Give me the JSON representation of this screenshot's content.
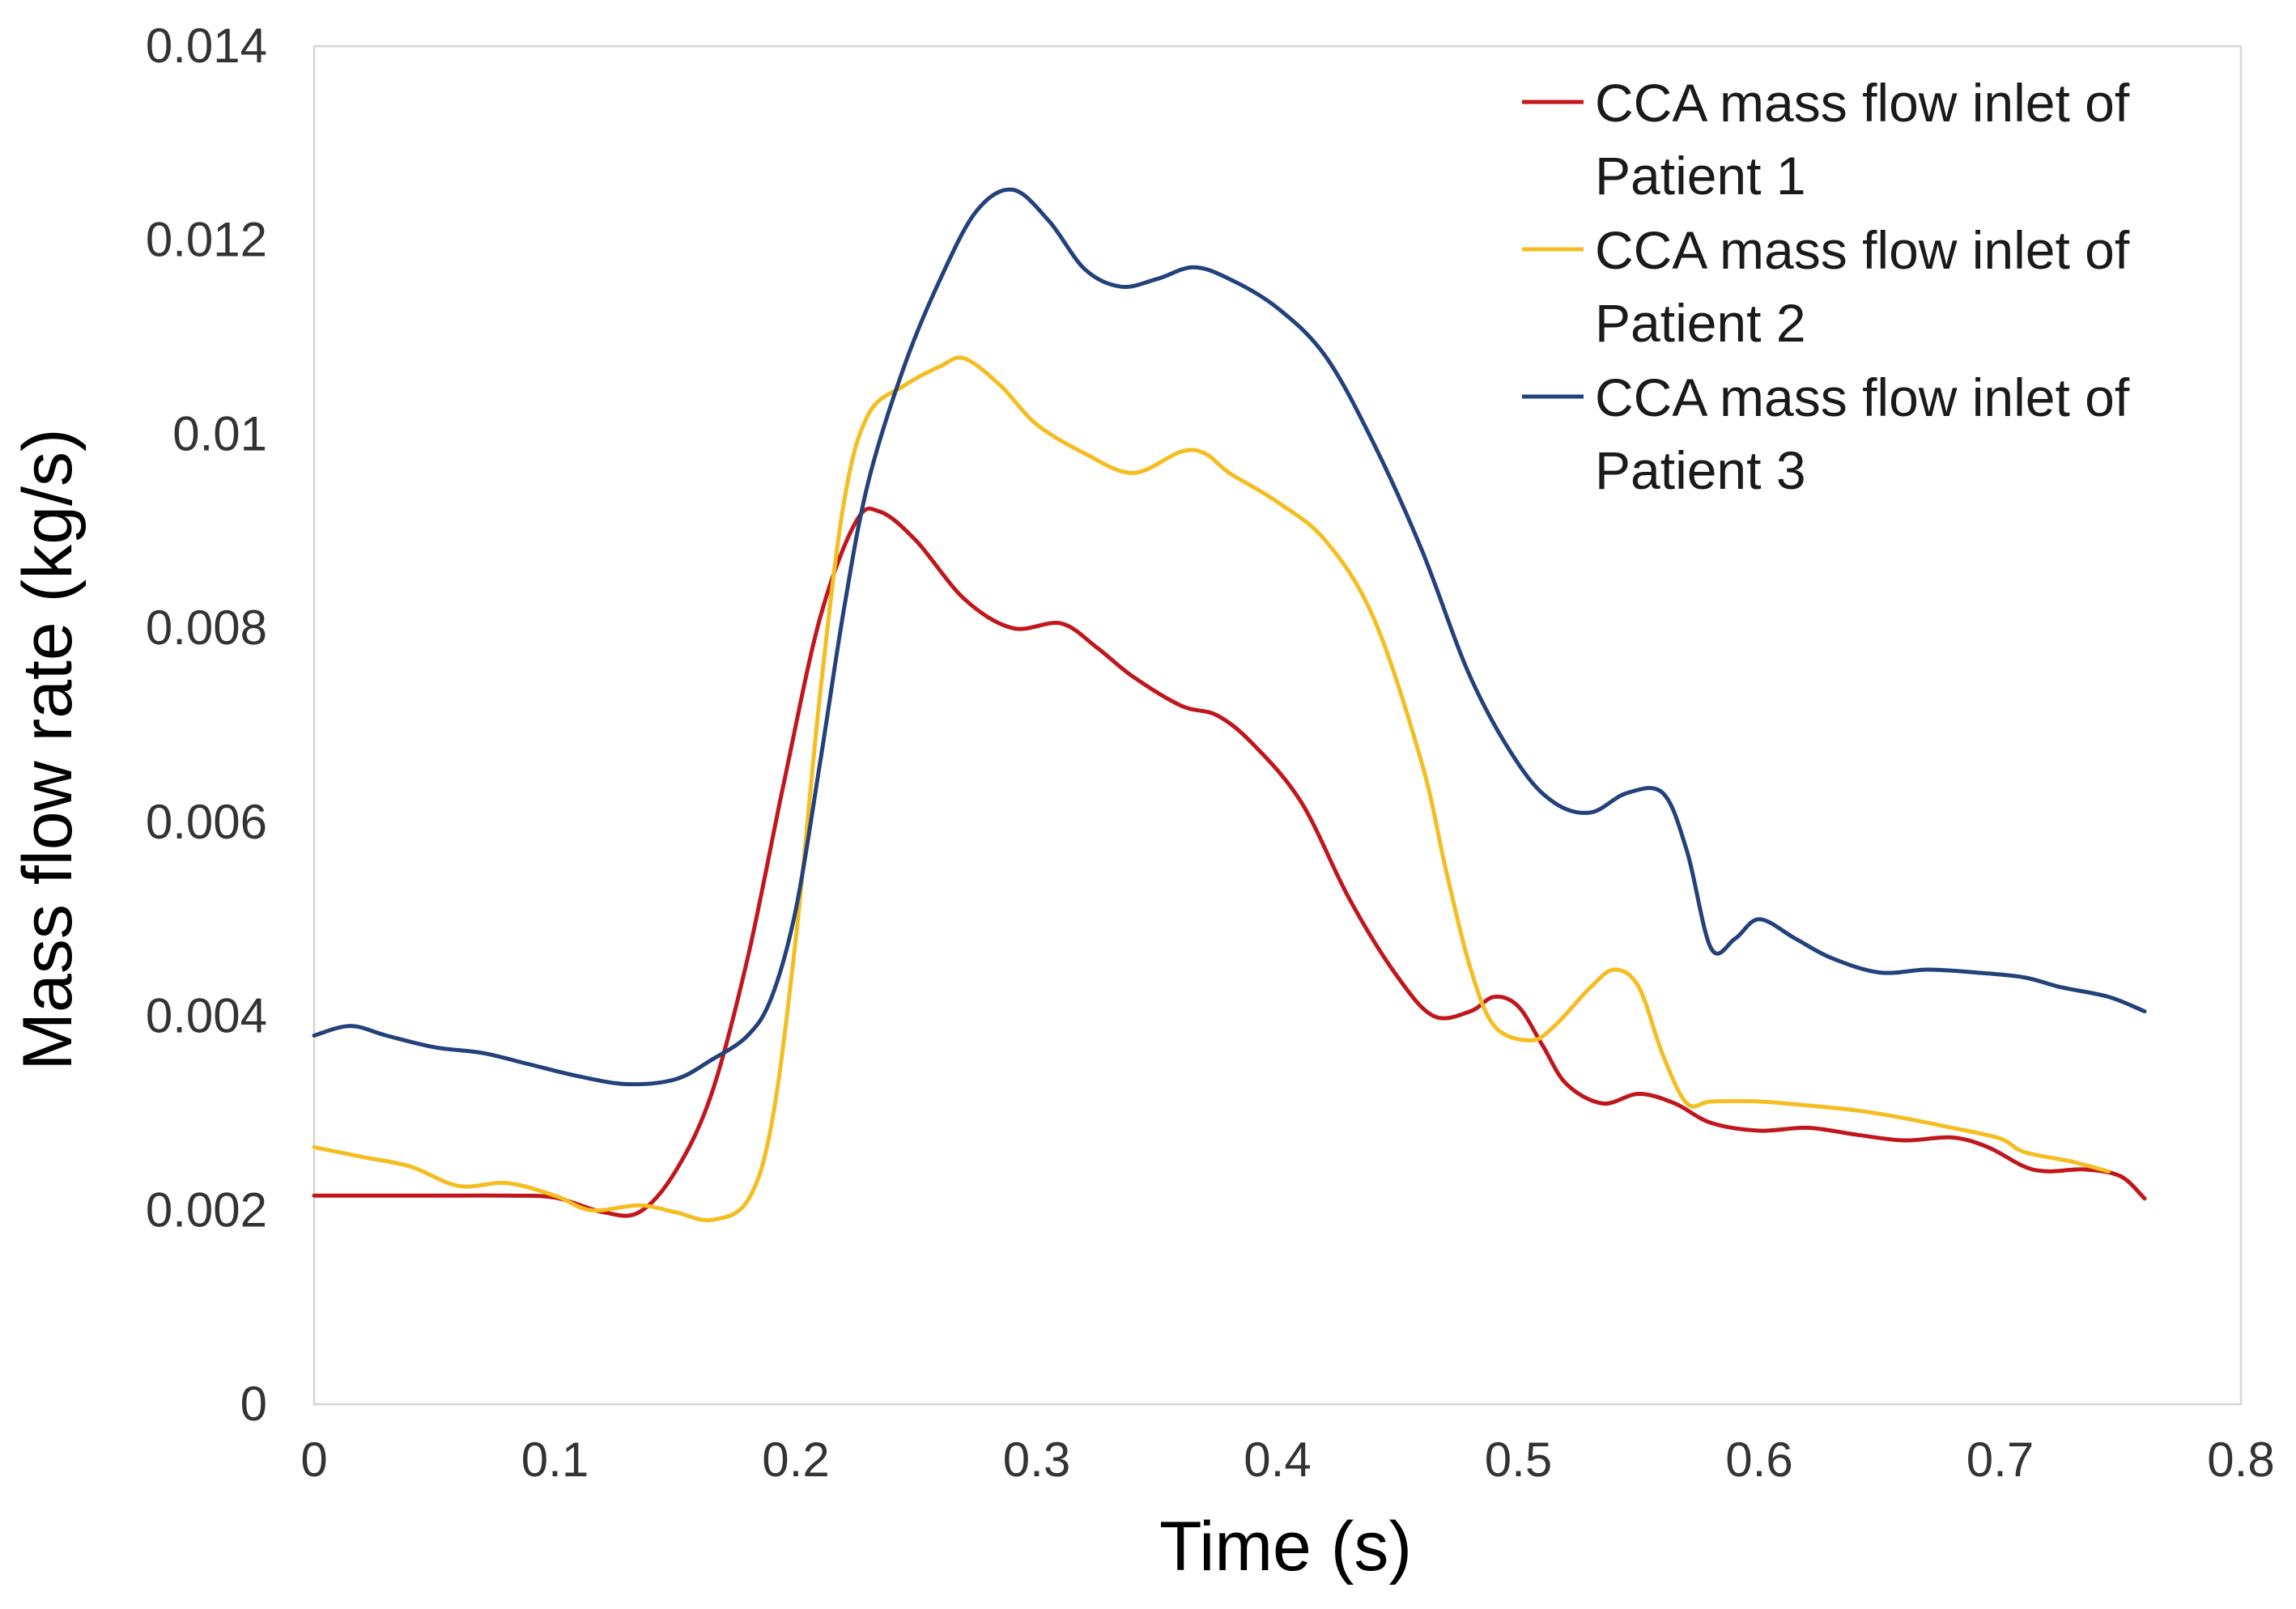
{
  "chart_data": {
    "type": "line",
    "title": "",
    "xlabel": "Time (s)",
    "ylabel": "Mass flow rate (kg/s)",
    "xlim": [
      0,
      0.8
    ],
    "ylim": [
      0,
      0.014
    ],
    "xticks": [
      0,
      0.1,
      0.2,
      0.3,
      0.4,
      0.5,
      0.6,
      0.7,
      0.8
    ],
    "xtick_labels": [
      "0",
      "0.1",
      "0.2",
      "0.3",
      "0.4",
      "0.5",
      "0.6",
      "0.7",
      "0.8"
    ],
    "yticks": [
      0,
      0.002,
      0.004,
      0.006,
      0.008,
      0.01,
      0.012,
      0.014
    ],
    "ytick_labels": [
      "0",
      "0.002",
      "0.004",
      "0.006",
      "0.008",
      "0.01",
      "0.012",
      "0.014"
    ],
    "grid": false,
    "legend_position": "top-right",
    "series": [
      {
        "name": "CCA mass flow inlet of Patient 1",
        "legend_lines": [
          "CCA mass flow inlet of",
          "Patient 1"
        ],
        "color": "#c0161c",
        "points": [
          [
            0,
            0.00215
          ],
          [
            0.02,
            0.00215
          ],
          [
            0.05,
            0.00215
          ],
          [
            0.08,
            0.00215
          ],
          [
            0.1,
            0.00213
          ],
          [
            0.12,
            0.00198
          ],
          [
            0.135,
            0.00198
          ],
          [
            0.15,
            0.0024
          ],
          [
            0.165,
            0.0032
          ],
          [
            0.18,
            0.0046
          ],
          [
            0.195,
            0.0064
          ],
          [
            0.21,
            0.0081
          ],
          [
            0.225,
            0.0091
          ],
          [
            0.235,
            0.0092
          ],
          [
            0.25,
            0.0089
          ],
          [
            0.27,
            0.0083
          ],
          [
            0.29,
            0.008
          ],
          [
            0.31,
            0.00805
          ],
          [
            0.325,
            0.0078
          ],
          [
            0.34,
            0.0075
          ],
          [
            0.36,
            0.0072
          ],
          [
            0.375,
            0.0071
          ],
          [
            0.39,
            0.0068
          ],
          [
            0.41,
            0.0062
          ],
          [
            0.43,
            0.0052
          ],
          [
            0.45,
            0.0044
          ],
          [
            0.465,
            0.004
          ],
          [
            0.48,
            0.00405
          ],
          [
            0.49,
            0.0042
          ],
          [
            0.5,
            0.0041
          ],
          [
            0.51,
            0.0037
          ],
          [
            0.52,
            0.0033
          ],
          [
            0.535,
            0.0031
          ],
          [
            0.55,
            0.0032
          ],
          [
            0.565,
            0.0031
          ],
          [
            0.58,
            0.0029
          ],
          [
            0.6,
            0.00282
          ],
          [
            0.62,
            0.00285
          ],
          [
            0.64,
            0.00278
          ],
          [
            0.66,
            0.00272
          ],
          [
            0.68,
            0.00275
          ],
          [
            0.695,
            0.00265
          ],
          [
            0.71,
            0.00245
          ],
          [
            0.72,
            0.0024
          ],
          [
            0.735,
            0.00242
          ],
          [
            0.75,
            0.00235
          ],
          [
            0.76,
            0.00212
          ]
        ]
      },
      {
        "name": "CCA mass flow inlet of Patient 2",
        "legend_lines": [
          "CCA mass flow inlet of",
          "Patient 2"
        ],
        "color": "#f5bd1f",
        "points": [
          [
            0,
            0.00265
          ],
          [
            0.02,
            0.00255
          ],
          [
            0.04,
            0.00245
          ],
          [
            0.06,
            0.00225
          ],
          [
            0.08,
            0.00228
          ],
          [
            0.1,
            0.00215
          ],
          [
            0.115,
            0.002
          ],
          [
            0.135,
            0.00205
          ],
          [
            0.15,
            0.00198
          ],
          [
            0.165,
            0.0019
          ],
          [
            0.18,
            0.0021
          ],
          [
            0.19,
            0.0029
          ],
          [
            0.2,
            0.0048
          ],
          [
            0.21,
            0.0073
          ],
          [
            0.22,
            0.0093
          ],
          [
            0.23,
            0.0102
          ],
          [
            0.245,
            0.0105
          ],
          [
            0.26,
            0.0107
          ],
          [
            0.27,
            0.01078
          ],
          [
            0.285,
            0.0105
          ],
          [
            0.3,
            0.0101
          ],
          [
            0.32,
            0.0098
          ],
          [
            0.34,
            0.0096
          ],
          [
            0.36,
            0.00982
          ],
          [
            0.37,
            0.0098
          ],
          [
            0.38,
            0.0096
          ],
          [
            0.4,
            0.0093
          ],
          [
            0.42,
            0.0089
          ],
          [
            0.44,
            0.0081
          ],
          [
            0.46,
            0.0066
          ],
          [
            0.47,
            0.0055
          ],
          [
            0.48,
            0.0045
          ],
          [
            0.49,
            0.0039
          ],
          [
            0.505,
            0.00375
          ],
          [
            0.515,
            0.0039
          ],
          [
            0.53,
            0.0043
          ],
          [
            0.54,
            0.00448
          ],
          [
            0.55,
            0.0043
          ],
          [
            0.56,
            0.0036
          ],
          [
            0.57,
            0.0031
          ],
          [
            0.58,
            0.00312
          ],
          [
            0.6,
            0.00312
          ],
          [
            0.62,
            0.00308
          ],
          [
            0.64,
            0.00303
          ],
          [
            0.66,
            0.00295
          ],
          [
            0.68,
            0.00285
          ],
          [
            0.7,
            0.00274
          ],
          [
            0.71,
            0.0026
          ],
          [
            0.73,
            0.0025
          ],
          [
            0.745,
            0.0024
          ]
        ]
      },
      {
        "name": "CCA mass flow inlet of Patient 3",
        "legend_lines": [
          "CCA mass flow inlet of",
          "Patient 3"
        ],
        "color": "#23417a",
        "points": [
          [
            0,
            0.0038
          ],
          [
            0.015,
            0.0039
          ],
          [
            0.03,
            0.0038
          ],
          [
            0.05,
            0.00368
          ],
          [
            0.07,
            0.00362
          ],
          [
            0.09,
            0.0035
          ],
          [
            0.11,
            0.00338
          ],
          [
            0.13,
            0.0033
          ],
          [
            0.15,
            0.00335
          ],
          [
            0.165,
            0.00355
          ],
          [
            0.18,
            0.0038
          ],
          [
            0.19,
            0.0042
          ],
          [
            0.2,
            0.0051
          ],
          [
            0.21,
            0.0066
          ],
          [
            0.22,
            0.0082
          ],
          [
            0.23,
            0.0095
          ],
          [
            0.245,
            0.0107
          ],
          [
            0.26,
            0.0116
          ],
          [
            0.275,
            0.0123
          ],
          [
            0.29,
            0.01252
          ],
          [
            0.305,
            0.0122
          ],
          [
            0.32,
            0.0117
          ],
          [
            0.335,
            0.01152
          ],
          [
            0.35,
            0.0116
          ],
          [
            0.365,
            0.01172
          ],
          [
            0.38,
            0.0116
          ],
          [
            0.4,
            0.0113
          ],
          [
            0.42,
            0.0108
          ],
          [
            0.44,
            0.0099
          ],
          [
            0.46,
            0.0088
          ],
          [
            0.48,
            0.0075
          ],
          [
            0.5,
            0.0066
          ],
          [
            0.515,
            0.0062
          ],
          [
            0.53,
            0.0061
          ],
          [
            0.545,
            0.0063
          ],
          [
            0.56,
            0.0063
          ],
          [
            0.57,
            0.0057
          ],
          [
            0.58,
            0.0047
          ],
          [
            0.59,
            0.0048
          ],
          [
            0.6,
            0.005
          ],
          [
            0.615,
            0.0048
          ],
          [
            0.63,
            0.0046
          ],
          [
            0.65,
            0.00445
          ],
          [
            0.67,
            0.00448
          ],
          [
            0.69,
            0.00445
          ],
          [
            0.71,
            0.0044
          ],
          [
            0.725,
            0.0043
          ],
          [
            0.745,
            0.0042
          ],
          [
            0.76,
            0.00405
          ]
        ]
      }
    ]
  }
}
